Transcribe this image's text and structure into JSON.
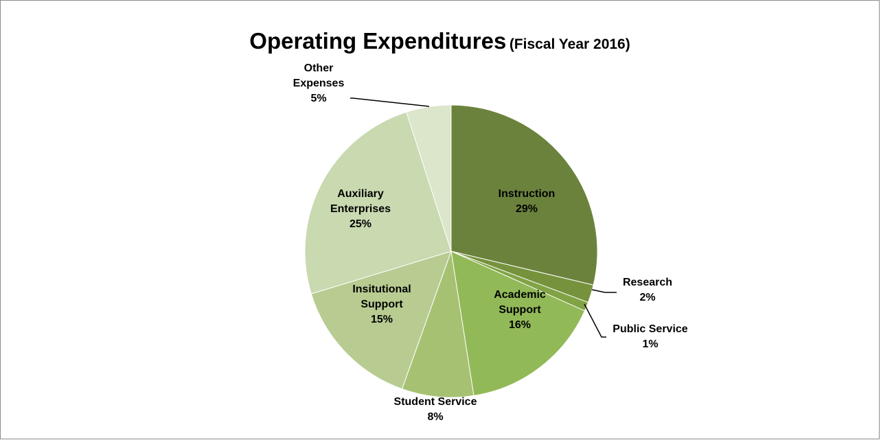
{
  "chart_data": {
    "type": "pie",
    "title": "Operating Expenditures",
    "subtitle": "(Fiscal Year 2016)",
    "legend": "none",
    "slices": [
      {
        "label": [
          "Instruction"
        ],
        "value": 29,
        "value_label": "29%",
        "color": "#6b823d"
      },
      {
        "label": [
          "Research"
        ],
        "value": 2,
        "value_label": "2%",
        "color": "#76923c"
      },
      {
        "label": [
          "Public Service"
        ],
        "value": 1,
        "value_label": "1%",
        "color": "#81a345"
      },
      {
        "label": [
          "Academic",
          "Support"
        ],
        "value": 16,
        "value_label": "16%",
        "color": "#92b957"
      },
      {
        "label": [
          "Student Service"
        ],
        "value": 8,
        "value_label": "8%",
        "color": "#a6c172"
      },
      {
        "label": [
          "Insitutional",
          "Support"
        ],
        "value": 15,
        "value_label": "15%",
        "color": "#b8cc92"
      },
      {
        "label": [
          "Auxiliary",
          "Enterprises"
        ],
        "value": 25,
        "value_label": "25%",
        "color": "#c9d9b0"
      },
      {
        "label": [
          "Other",
          "Expenses"
        ],
        "value": 5,
        "value_label": "5%",
        "color": "#dbe6cb"
      }
    ]
  }
}
